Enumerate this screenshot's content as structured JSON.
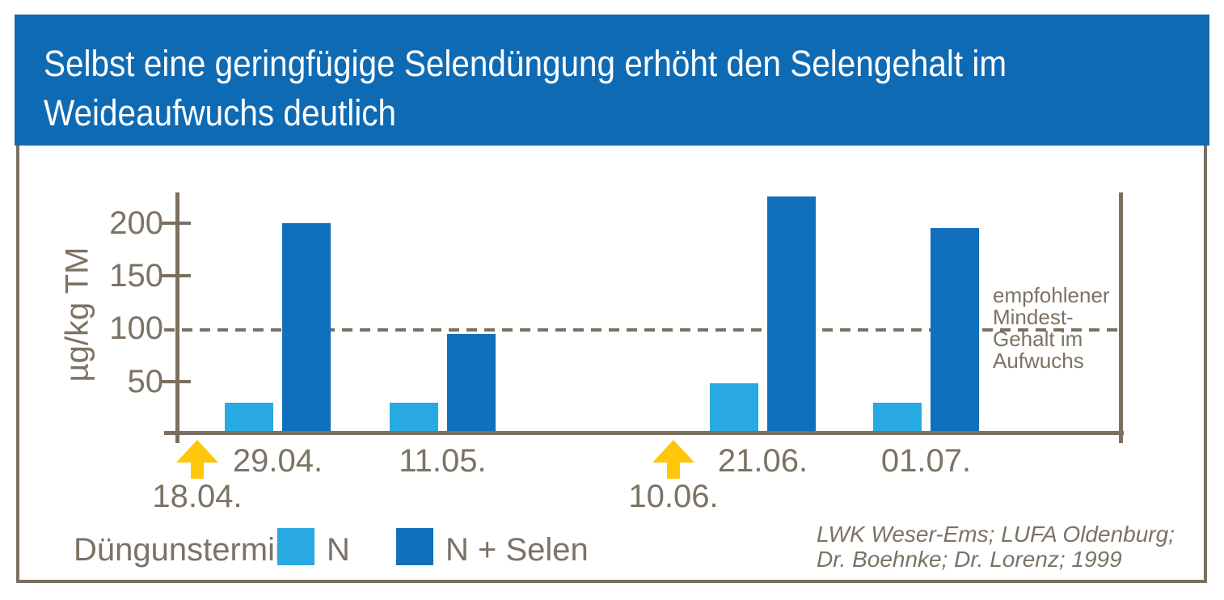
{
  "header": {
    "title_lines": [
      "Selbst eine geringfügige Selendüngung erhöht den Selengehalt im",
      "Weideaufwuchs deutlich"
    ]
  },
  "chart_data": {
    "type": "bar",
    "title": "Selbst eine geringfügige Selendüngung erhöht den Selengehalt im Weideaufwuchs deutlich",
    "ylabel": "µg/kg TM",
    "xlabel": "",
    "ylim": [
      0,
      230
    ],
    "yticks": [
      200,
      150,
      100,
      50
    ],
    "grid": false,
    "legend_position": "bottom",
    "legend_title": "Düngunstermin",
    "categories": [
      "29.04.",
      "11.05.",
      "21.06.",
      "01.07."
    ],
    "series": [
      {
        "name": "N",
        "color": "#29A9E1",
        "values": [
          30,
          30,
          48,
          30
        ]
      },
      {
        "name": "N + Selen",
        "color": "#1170BB",
        "values": [
          200,
          95,
          225,
          195
        ]
      }
    ],
    "reference_line": {
      "value": 100,
      "style": "dashed",
      "label_lines": [
        "empfohlener",
        "Mindest-",
        "Gehalt im",
        "Aufwuchs"
      ]
    },
    "fertilization_events": [
      "18.04.",
      "10.06."
    ]
  },
  "source": {
    "lines": [
      "LWK Weser-Ems; LUFA Oldenburg;",
      "Dr. Boehnke; Dr. Lorenz; 1999"
    ]
  },
  "colors": {
    "header_bg": "#0F6AB4",
    "header_text": "#FFFFFF",
    "bar_n": "#29A9E1",
    "bar_n_selen": "#1170BB",
    "axis": "#7B7060",
    "text": "#7C7265",
    "arrow": "#FFC60A",
    "background": "#FFFFFF"
  }
}
